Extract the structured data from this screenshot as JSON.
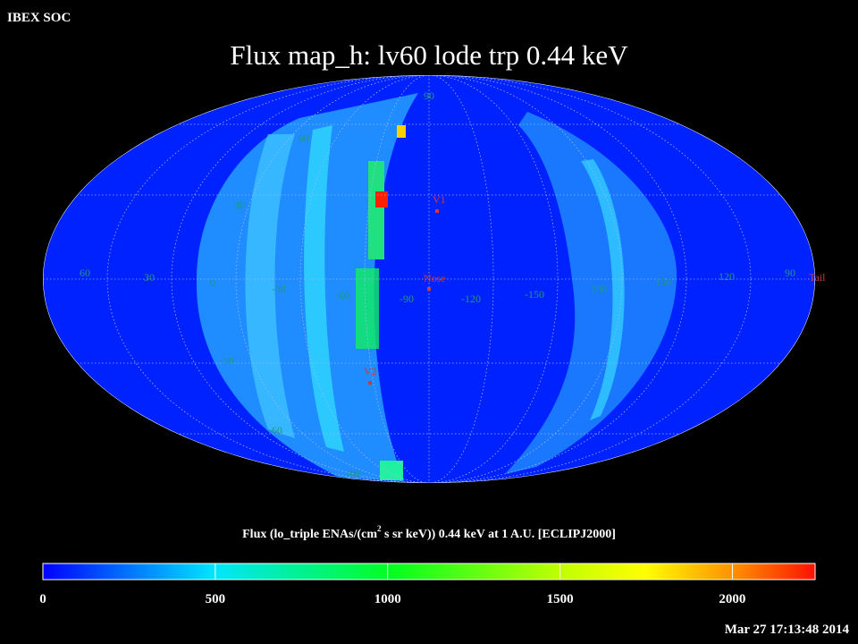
{
  "header": {
    "org": "IBEX SOC",
    "title": "Flux map_h: lv60 lode trp 0.44 keV"
  },
  "map": {
    "longitude_labels": [
      "60",
      "30",
      "0",
      "-30",
      "-60",
      "-90",
      "-120",
      "-150",
      "180",
      "150",
      "120",
      "90"
    ],
    "latitude_labels": [
      "90",
      "60",
      "30",
      "-30",
      "-60",
      "-90"
    ],
    "markers": {
      "v1": "V1",
      "nose": "Nose",
      "v2": "V2",
      "tail": "Tail"
    }
  },
  "colorbar": {
    "label_start": "Flux (lo_triple ENAs/(cm",
    "label_sup": "2",
    "label_end": " s sr keV)) 0.44 keV at 1 A.U. [ECLIPJ2000]",
    "lim": [
      0,
      2240
    ],
    "ticks": [
      0,
      500,
      1000,
      1500,
      2000
    ]
  },
  "footer": {
    "timestamp": "Mar 27 17:13:48 2014"
  }
}
